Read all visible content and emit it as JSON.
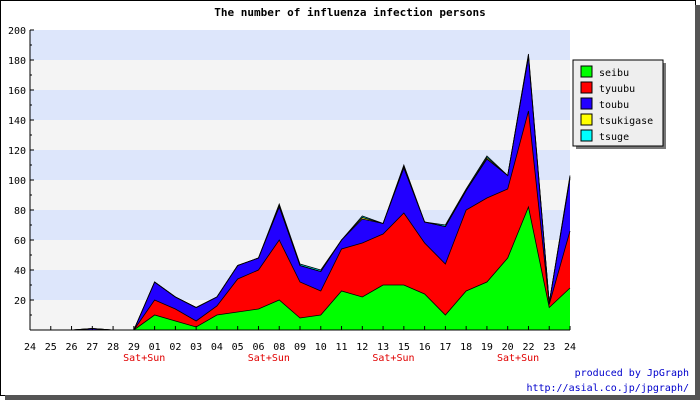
{
  "chart_data": {
    "type": "area",
    "stacked": true,
    "title": "The number of influenza infection persons",
    "ylim": [
      0,
      200
    ],
    "yticks": [
      20,
      40,
      60,
      80,
      100,
      120,
      140,
      160,
      180,
      200
    ],
    "categories": [
      "24",
      "25",
      "26",
      "27",
      "28",
      "29",
      "01",
      "02",
      "03",
      "04",
      "05",
      "06",
      "08",
      "09",
      "10",
      "11",
      "12",
      "13",
      "15",
      "16",
      "17",
      "18",
      "19",
      "20",
      "22",
      "23",
      "24"
    ],
    "weekend_label": "Sat+Sun",
    "weekend_positions": [
      6,
      12,
      18,
      24
    ],
    "legend_position": "right",
    "series": [
      {
        "name": "seibu",
        "color": "#00ff00",
        "values": [
          0,
          0,
          0,
          0,
          0,
          0,
          10,
          6,
          2,
          10,
          12,
          14,
          20,
          8,
          10,
          26,
          22,
          30,
          30,
          24,
          10,
          26,
          32,
          48,
          82,
          15,
          28
        ]
      },
      {
        "name": "tyuubu",
        "color": "#ff0000",
        "values": [
          0,
          0,
          0,
          0,
          0,
          0,
          10,
          8,
          4,
          6,
          22,
          26,
          40,
          24,
          16,
          28,
          36,
          34,
          48,
          34,
          34,
          54,
          56,
          46,
          64,
          2,
          38
        ]
      },
      {
        "name": "toubu",
        "color": "#2200ff",
        "values": [
          0,
          0,
          0,
          1,
          0,
          0,
          12,
          8,
          9,
          6,
          9,
          8,
          22,
          11,
          13,
          6,
          16,
          7,
          30,
          14,
          25,
          13,
          26,
          9,
          36,
          1,
          35
        ]
      },
      {
        "name": "tsukigase",
        "color": "#ffff00",
        "values": [
          0,
          0,
          0,
          0,
          0,
          0,
          0,
          0,
          0,
          0,
          0,
          0,
          1,
          0,
          0,
          0,
          1,
          0,
          1,
          0,
          0,
          0,
          1,
          0,
          1,
          0,
          1
        ]
      },
      {
        "name": "tsuge",
        "color": "#00ffff",
        "values": [
          0,
          0,
          0,
          0,
          0,
          0,
          0,
          0,
          0,
          0,
          0,
          0,
          1,
          1,
          1,
          0,
          1,
          0,
          1,
          0,
          1,
          1,
          1,
          0,
          1,
          0,
          1
        ]
      }
    ]
  },
  "credit": {
    "line1": "produced by JpGraph",
    "line2": "http://asial.co.jp/jpgraph/"
  }
}
